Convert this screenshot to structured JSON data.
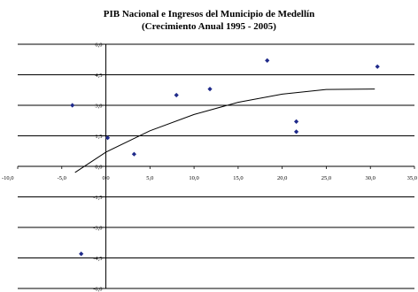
{
  "chart_data": {
    "type": "scatter",
    "title": "PIB Nacional e Ingresos del Municipio de Medellín",
    "subtitle": "(Crecimiento Anual 1995 - 2005)",
    "xlabel": "",
    "ylabel": "",
    "xlim": [
      -10.0,
      35.0
    ],
    "ylim": [
      -6.0,
      6.0
    ],
    "x_ticks": [
      "-10,0",
      "-5,0",
      "0,0",
      "5,0",
      "10,0",
      "15,0",
      "20,0",
      "25,0",
      "30,0",
      "35,0"
    ],
    "y_ticks": [
      "6,0",
      "4,5",
      "3,0",
      "1,5",
      "0,0",
      "-1,5",
      "-3,0",
      "-4,5",
      "-6,0"
    ],
    "grid": "horizontal",
    "point_color": "#1f2a8a",
    "points": [
      {
        "x": -3.8,
        "y": 3.0
      },
      {
        "x": 0.2,
        "y": 1.4
      },
      {
        "x": 3.2,
        "y": 0.6
      },
      {
        "x": 8.0,
        "y": 3.5
      },
      {
        "x": 11.8,
        "y": 3.8
      },
      {
        "x": 18.3,
        "y": 5.2
      },
      {
        "x": 21.6,
        "y": 1.7
      },
      {
        "x": 21.6,
        "y": 2.2
      },
      {
        "x": 30.8,
        "y": 4.9
      },
      {
        "x": -2.8,
        "y": -4.3
      }
    ],
    "trendline": [
      {
        "x": -3.5,
        "y": -0.3
      },
      {
        "x": 0,
        "y": 0.7
      },
      {
        "x": 5,
        "y": 1.75
      },
      {
        "x": 10,
        "y": 2.55
      },
      {
        "x": 15,
        "y": 3.15
      },
      {
        "x": 20,
        "y": 3.55
      },
      {
        "x": 25,
        "y": 3.78
      },
      {
        "x": 30.5,
        "y": 3.8
      }
    ]
  }
}
